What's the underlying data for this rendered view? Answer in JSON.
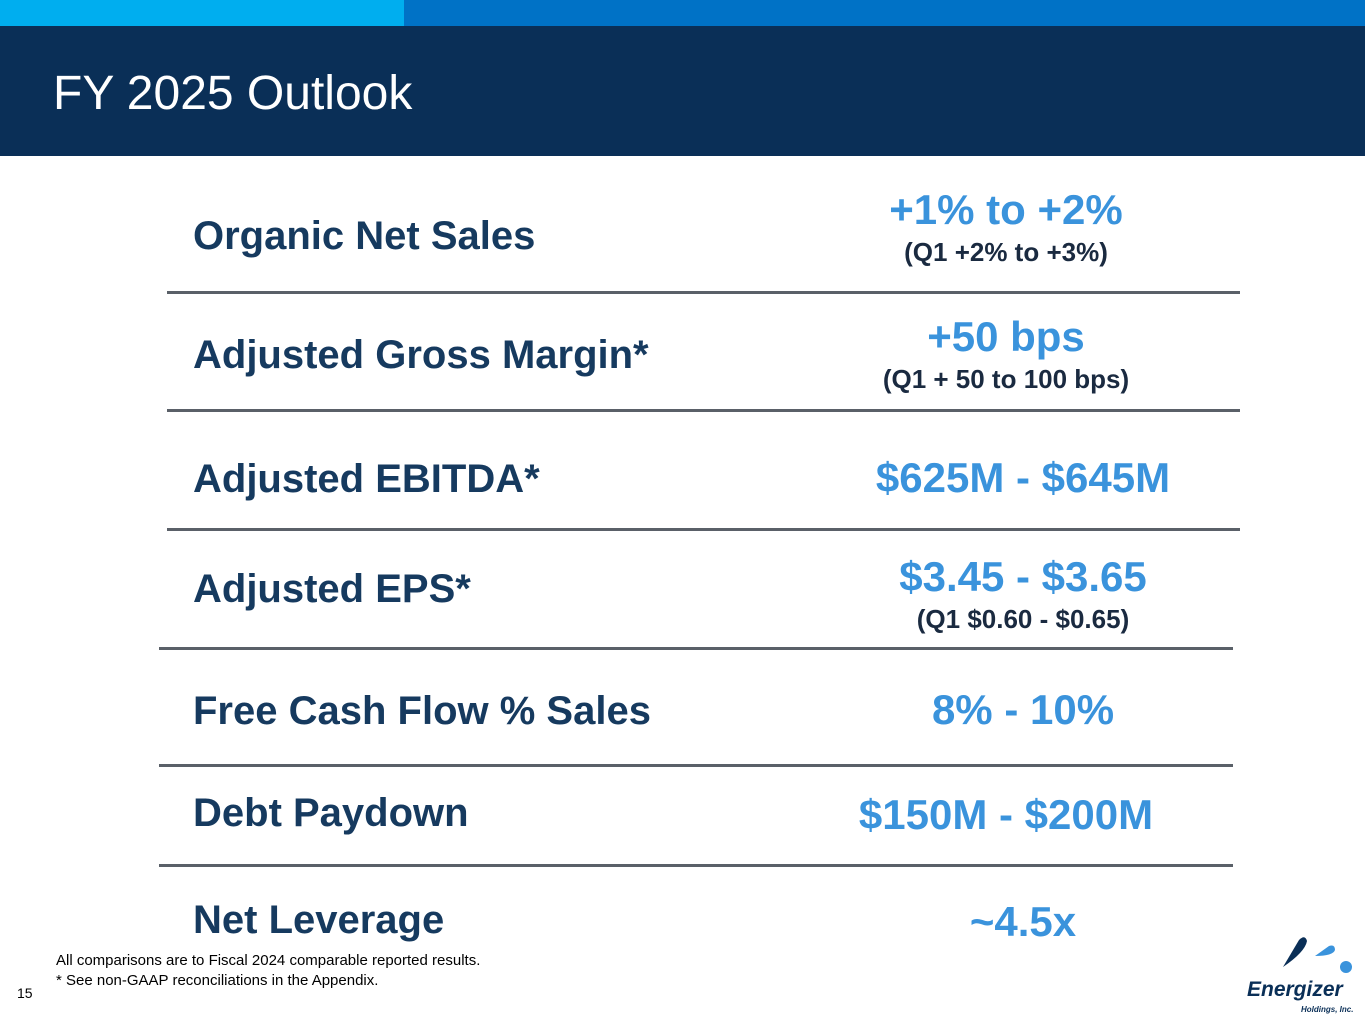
{
  "colors": {
    "accent_light": "#00aeef",
    "accent_dark": "#0072c6",
    "header_bg": "#0a2f57",
    "label_color": "#163a5f",
    "value_color": "#3a93dc",
    "sub_color": "#1a2a40"
  },
  "header": {
    "title": "FY 2025 Outlook"
  },
  "rows": [
    {
      "label": "Organic Net Sales",
      "value": "+1% to +2%",
      "sub": "(Q1 +2% to +3%)"
    },
    {
      "label": "Adjusted Gross Margin*",
      "value": "+50 bps",
      "sub": "(Q1 + 50 to 100 bps)"
    },
    {
      "label": "Adjusted EBITDA*",
      "value": "$625M - $645M"
    },
    {
      "label": "Adjusted EPS*",
      "value": "$3.45 - $3.65",
      "sub": "(Q1 $0.60 - $0.65)"
    },
    {
      "label": "Free Cash Flow % Sales",
      "value": "8% - 10%"
    },
    {
      "label": "Debt Paydown",
      "value": "$150M - $200M"
    },
    {
      "label": "Net Leverage",
      "value": "~4.5x"
    }
  ],
  "footnotes": {
    "line1": "All comparisons are to Fiscal 2024 comparable reported results.",
    "line2": "* See non-GAAP reconciliations in the Appendix."
  },
  "page_number": "15",
  "logo": {
    "name": "Energizer",
    "subtitle": "Holdings, Inc."
  }
}
